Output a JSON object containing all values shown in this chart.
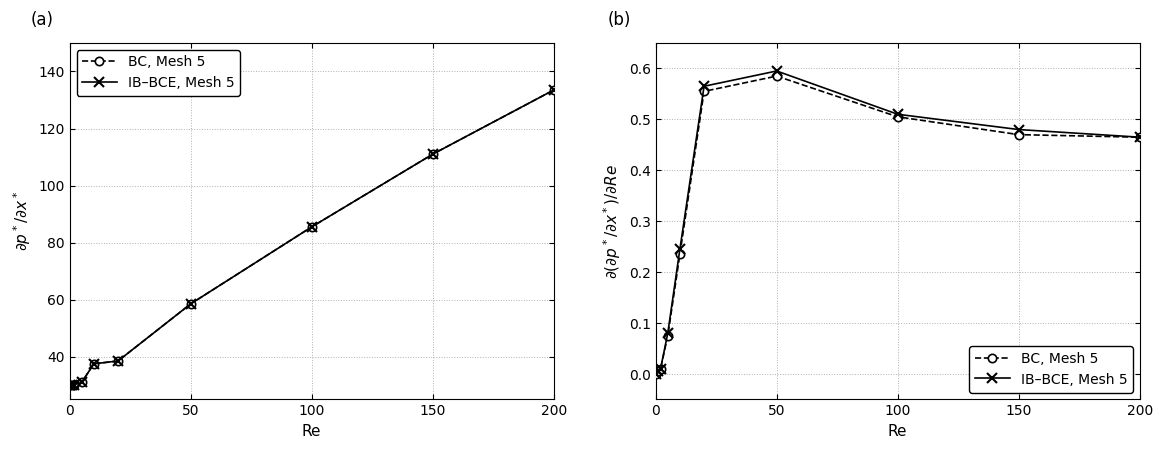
{
  "panel_a": {
    "re": [
      0,
      1,
      2,
      5,
      10,
      20,
      50,
      100,
      150,
      200
    ],
    "bc_y": [
      30.0,
      30.1,
      30.2,
      31.0,
      37.5,
      38.5,
      58.5,
      85.5,
      111.0,
      133.5
    ],
    "ibce_y": [
      30.0,
      30.1,
      30.2,
      31.0,
      37.5,
      38.5,
      58.5,
      85.5,
      111.0,
      133.5
    ],
    "xlabel": "Re",
    "ylabel": "$\\partial p^*/\\partial x^*$",
    "ylim": [
      25,
      150
    ],
    "yticks": [
      40,
      60,
      80,
      100,
      120,
      140
    ],
    "xticks": [
      0,
      50,
      100,
      150,
      200
    ],
    "xlim": [
      0,
      200
    ],
    "label": "(a)"
  },
  "panel_b": {
    "re_bc": [
      0,
      1,
      2,
      5,
      10,
      20,
      50,
      100,
      150,
      200
    ],
    "bc_y": [
      0.0,
      0.005,
      0.01,
      0.075,
      0.235,
      0.555,
      0.585,
      0.505,
      0.47,
      0.465
    ],
    "re_ibce": [
      0,
      1,
      2,
      5,
      10,
      20,
      50,
      100,
      150,
      200
    ],
    "ibce_y": [
      0.0,
      0.005,
      0.01,
      0.08,
      0.245,
      0.565,
      0.595,
      0.51,
      0.48,
      0.465
    ],
    "xlabel": "Re",
    "ylabel": "$\\partial(\\partial p^*/\\partial x^*)/\\partial Re$",
    "ylim": [
      -0.05,
      0.65
    ],
    "yticks": [
      0.0,
      0.1,
      0.2,
      0.3,
      0.4,
      0.5,
      0.6
    ],
    "xticks": [
      0,
      50,
      100,
      150,
      200
    ],
    "xlim": [
      0,
      200
    ],
    "label": "(b)"
  },
  "bc_label": "BC, Mesh 5",
  "ibce_label": "IB–BCE, Mesh 5",
  "line_color": "#000000",
  "bc_linestyle": "--",
  "ibce_linestyle": "-",
  "marker_bc": "o",
  "marker_ibce": "x",
  "markersize_bc": 6,
  "markersize_ibce": 7,
  "linewidth": 1.2,
  "grid_color": "#b0b0b0",
  "bg_color": "#ffffff",
  "font_size": 11,
  "tick_fontsize": 10
}
